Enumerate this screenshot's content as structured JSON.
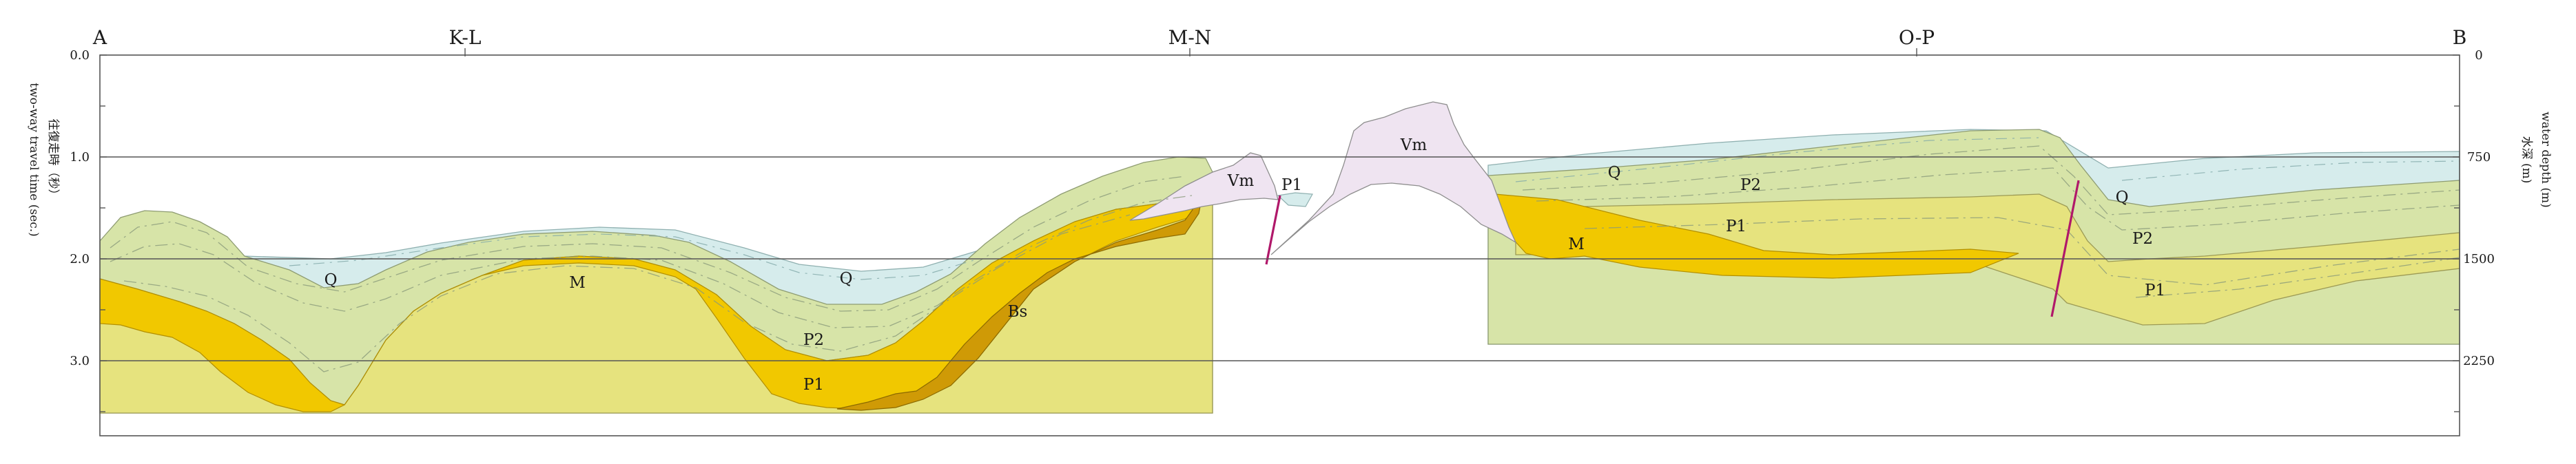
{
  "stations": [
    "A",
    "K-L",
    "M-N",
    "O-P",
    "B"
  ],
  "left_axis": {
    "ticks": [
      "0.0",
      "1.0",
      "2.0",
      "3.0"
    ],
    "label_cjk": "往復走時（秒）",
    "label_en": "two-way travel time (sec.)"
  },
  "right_axis": {
    "ticks": [
      "0",
      "750",
      "1500",
      "2250"
    ],
    "label_cjk": "水深 (m)",
    "label_en": "water depth (m)"
  },
  "units": {
    "Q": "Q",
    "P2": "P2",
    "P1": "P1",
    "M": "M",
    "Bs": "Bs",
    "Vm": "Vm"
  },
  "colors": {
    "Q": "#d6ecec",
    "P2": "#d7e4a8",
    "P1": "#e6e37e",
    "M": "#f1c800",
    "Bs": "#cf9a06",
    "Vm": "#efe4f1",
    "fault": "#b0186a"
  }
}
